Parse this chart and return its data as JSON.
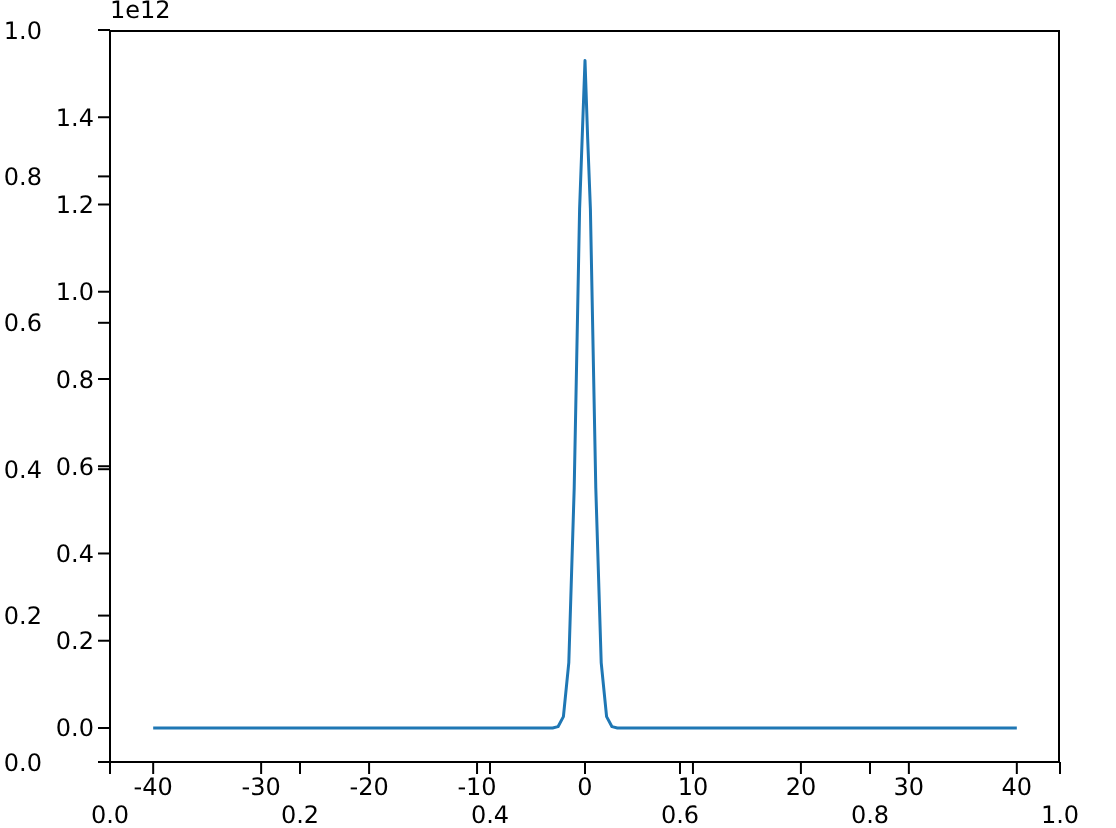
{
  "chart_data": [
    {
      "type": "line",
      "xlim": [
        0,
        1
      ],
      "ylim": [
        0,
        1
      ],
      "xticks": [
        {
          "value": 0,
          "label": "0.0"
        },
        {
          "value": 0.2,
          "label": "0.2"
        },
        {
          "value": 0.4,
          "label": "0.4"
        },
        {
          "value": 0.6,
          "label": "0.6"
        },
        {
          "value": 0.8,
          "label": "0.8"
        },
        {
          "value": 1,
          "label": "1.0"
        }
      ],
      "yticks": [
        {
          "value": 0,
          "label": "0.0"
        },
        {
          "value": 0.2,
          "label": "0.2"
        },
        {
          "value": 0.4,
          "label": "0.4"
        },
        {
          "value": 0.6,
          "label": "0.6"
        },
        {
          "value": 0.8,
          "label": "0.8"
        },
        {
          "value": 1,
          "label": "1.0"
        }
      ]
    },
    {
      "type": "line",
      "marker": "none",
      "annotations": [
        "1e12"
      ],
      "xlim": [
        -44,
        44
      ],
      "ylim": [
        -0.078,
        1.6
      ],
      "xticks": [
        -40,
        -30,
        -20,
        -10,
        0,
        10,
        20,
        30,
        40
      ],
      "yticks": [
        {
          "value": 0,
          "label": "0.0"
        },
        {
          "value": 0.2,
          "label": "0.2"
        },
        {
          "value": 0.4,
          "label": "0.4"
        },
        {
          "value": 0.6,
          "label": "0.6"
        },
        {
          "value": 0.8,
          "label": "0.8"
        },
        {
          "value": 1.0,
          "label": "1.0"
        },
        {
          "value": 1.2,
          "label": "1.2"
        },
        {
          "value": 1.4,
          "label": "1.4"
        }
      ],
      "series": [
        {
          "color": "#1f77b4",
          "x": [
            -40,
            -10,
            -4,
            -3,
            -2.5,
            -2,
            -1.5,
            -1,
            -0.5,
            0,
            0.25,
            0.5,
            1,
            1.5,
            2,
            2.5,
            3,
            4,
            10,
            40
          ],
          "values": [
            0,
            0,
            0,
            0,
            0.003,
            0.026,
            0.15,
            0.55,
            1.19,
            1.53,
            1.35,
            1.19,
            0.55,
            0.15,
            0.026,
            0.003,
            0,
            0,
            0,
            0
          ]
        }
      ]
    }
  ]
}
